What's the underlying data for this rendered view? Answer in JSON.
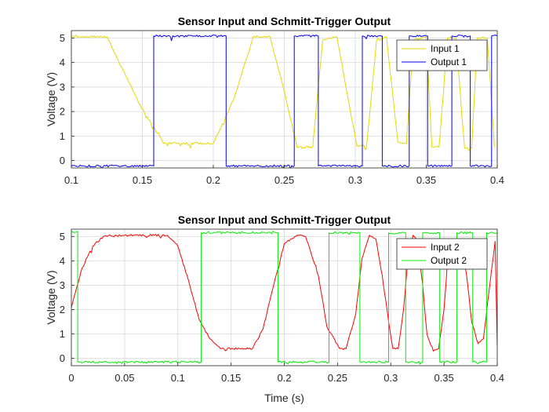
{
  "chart_data": [
    {
      "type": "line",
      "title": "Sensor Input and Schmitt-Trigger Output",
      "xlabel": "",
      "ylabel": "Voltage (V)",
      "xlim": [
        0.1,
        0.4
      ],
      "ylim": [
        -0.3,
        5.3
      ],
      "xticks": [
        0.1,
        0.15,
        0.2,
        0.25,
        0.3,
        0.35,
        0.4
      ],
      "xtick_labels": [
        "0.1",
        "0.15",
        "0.2",
        "0.25",
        "0.3",
        "0.35",
        "0.4"
      ],
      "yticks": [
        0,
        1,
        2,
        3,
        4,
        5
      ],
      "ytick_labels": [
        "0",
        "1",
        "2",
        "3",
        "4",
        "5"
      ],
      "grid": true,
      "legend_position": "top-right",
      "series": [
        {
          "name": "Input 1",
          "color": "#e6d800",
          "x": [
            0.1,
            0.125,
            0.148,
            0.165,
            0.2,
            0.215,
            0.228,
            0.24,
            0.25,
            0.259,
            0.27,
            0.277,
            0.287,
            0.301,
            0.308,
            0.315,
            0.322,
            0.33,
            0.336,
            0.341,
            0.35,
            0.354,
            0.359,
            0.365,
            0.371,
            0.377,
            0.382,
            0.386,
            0.393,
            0.398
          ],
          "y": [
            5.05,
            5.05,
            2.3,
            0.7,
            0.7,
            2.6,
            5.05,
            5.05,
            2.8,
            0.55,
            0.55,
            4.9,
            5.05,
            0.6,
            0.6,
            4.9,
            5.05,
            0.75,
            0.7,
            4.9,
            5.05,
            0.55,
            0.55,
            5.0,
            5.0,
            0.5,
            0.5,
            5.0,
            5.0,
            0.55
          ]
        },
        {
          "name": "Output 1",
          "color": "#0000ff",
          "x": [
            0.1,
            0.158,
            0.158,
            0.209,
            0.209,
            0.257,
            0.257,
            0.274,
            0.274,
            0.305,
            0.305,
            0.319,
            0.319,
            0.338,
            0.338,
            0.351,
            0.351,
            0.368,
            0.368,
            0.381,
            0.381,
            0.396,
            0.396,
            0.4
          ],
          "y": [
            -0.22,
            -0.22,
            5.08,
            5.08,
            -0.22,
            -0.22,
            5.08,
            5.08,
            -0.22,
            -0.22,
            5.08,
            5.08,
            -0.22,
            -0.22,
            5.08,
            5.08,
            -0.22,
            -0.22,
            5.08,
            5.08,
            -0.22,
            -0.22,
            5.08,
            5.08
          ]
        }
      ]
    },
    {
      "type": "line",
      "title": "Sensor Input and Schmitt-Trigger Output",
      "xlabel": "Time (s)",
      "ylabel": "Voltage (V)",
      "xlim": [
        0,
        0.4
      ],
      "ylim": [
        -0.3,
        5.3
      ],
      "xticks": [
        0,
        0.05,
        0.1,
        0.15,
        0.2,
        0.25,
        0.3,
        0.35,
        0.4
      ],
      "xtick_labels": [
        "0",
        "0.05",
        "0.1",
        "0.15",
        "0.2",
        "0.25",
        "0.3",
        "0.35",
        "0.4"
      ],
      "yticks": [
        0,
        1,
        2,
        3,
        4,
        5
      ],
      "ytick_labels": [
        "0",
        "1",
        "2",
        "3",
        "4",
        "5"
      ],
      "grid": true,
      "legend_position": "top-right",
      "series": [
        {
          "name": "Input 2",
          "color": "#ff0000",
          "x": [
            0,
            0.01,
            0.02,
            0.03,
            0.05,
            0.09,
            0.1,
            0.11,
            0.12,
            0.13,
            0.14,
            0.17,
            0.18,
            0.19,
            0.2,
            0.212,
            0.22,
            0.232,
            0.24,
            0.252,
            0.258,
            0.267,
            0.273,
            0.28,
            0.286,
            0.292,
            0.298,
            0.302,
            0.307,
            0.312,
            0.316,
            0.321,
            0.325,
            0.33,
            0.334,
            0.34,
            0.345,
            0.35,
            0.354,
            0.36,
            0.365,
            0.371,
            0.376,
            0.382,
            0.387,
            0.393,
            0.398,
            0.4
          ],
          "y": [
            2.1,
            3.7,
            4.6,
            5.0,
            5.05,
            5.05,
            4.6,
            3.2,
            1.6,
            0.8,
            0.4,
            0.4,
            1.2,
            3.0,
            4.7,
            5.05,
            5.0,
            3.4,
            1.3,
            0.4,
            0.4,
            1.8,
            4.1,
            5.05,
            4.9,
            3.4,
            1.5,
            0.4,
            0.4,
            2.0,
            4.1,
            5.05,
            4.8,
            3.0,
            1.0,
            0.3,
            0.4,
            2.0,
            4.3,
            4.9,
            4.7,
            3.5,
            1.5,
            0.6,
            0.8,
            3.0,
            4.8,
            0.5
          ]
        },
        {
          "name": "Output 2",
          "color": "#00ee00",
          "x": [
            0,
            0.006,
            0.006,
            0.122,
            0.122,
            0.194,
            0.194,
            0.242,
            0.242,
            0.271,
            0.271,
            0.298,
            0.298,
            0.314,
            0.314,
            0.33,
            0.33,
            0.346,
            0.346,
            0.362,
            0.362,
            0.377,
            0.377,
            0.39,
            0.39,
            0.4
          ],
          "y": [
            5.2,
            5.2,
            -0.15,
            -0.15,
            5.15,
            5.15,
            -0.15,
            -0.15,
            5.15,
            5.15,
            -0.15,
            -0.15,
            5.15,
            5.15,
            -0.15,
            -0.15,
            5.15,
            5.15,
            -0.15,
            -0.15,
            5.15,
            5.15,
            -0.15,
            -0.15,
            5.15,
            5.15
          ]
        }
      ]
    }
  ]
}
